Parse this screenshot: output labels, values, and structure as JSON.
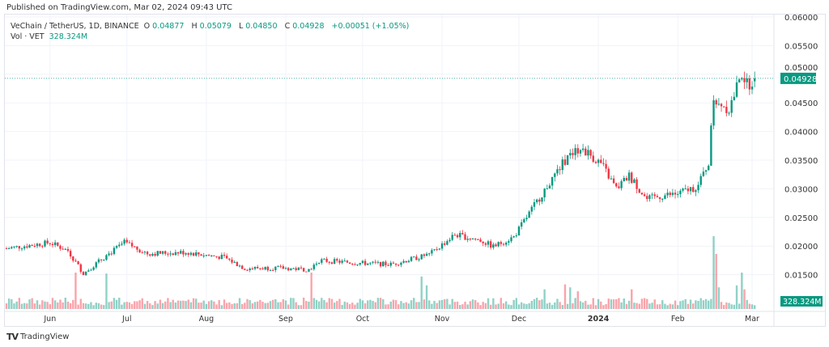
{
  "header": {
    "published": "Published on TradingView.com, Mar 02, 2024 09:43 UTC"
  },
  "legend": {
    "symbol": "VeChain / TetherUS, 1D, BINANCE",
    "o_label": "O",
    "o": "0.04877",
    "h_label": "H",
    "h": "0.05079",
    "l_label": "L",
    "l": "0.04850",
    "c_label": "C",
    "c": "0.04928",
    "change": "+0.00051 (+1.05%)",
    "vol_label": "Vol · VET",
    "vol": "328.324M"
  },
  "footer": {
    "brand": "TradingView"
  },
  "colors": {
    "up": "#089981",
    "down": "#f23645",
    "grid": "#f0f3fa"
  },
  "chart_data": {
    "type": "candlestick",
    "title": "VeChain / TetherUS, 1D, BINANCE",
    "ylim": [
      0.0125,
      0.06
    ],
    "y_ticks": [
      "0.06000",
      "0.05500",
      "0.05000",
      "0.04500",
      "0.04000",
      "0.03500",
      "0.03000",
      "0.02500",
      "0.02000",
      "0.01500"
    ],
    "x_ticks": [
      {
        "label": "Jun",
        "day": 17
      },
      {
        "label": "Jul",
        "day": 47
      },
      {
        "label": "Aug",
        "day": 78
      },
      {
        "label": "Sep",
        "day": 109
      },
      {
        "label": "Oct",
        "day": 139
      },
      {
        "label": "Nov",
        "day": 170
      },
      {
        "label": "Dec",
        "day": 200
      },
      {
        "label": "2024",
        "day": 231
      },
      {
        "label": "Feb",
        "day": 262
      },
      {
        "label": "Mar",
        "day": 291
      }
    ],
    "days": 293,
    "close_keyframes": [
      [
        0,
        0.0196
      ],
      [
        17,
        0.0206
      ],
      [
        24,
        0.0192
      ],
      [
        30,
        0.0152
      ],
      [
        38,
        0.018
      ],
      [
        46,
        0.0206
      ],
      [
        55,
        0.0187
      ],
      [
        70,
        0.0189
      ],
      [
        85,
        0.018
      ],
      [
        93,
        0.0161
      ],
      [
        105,
        0.0162
      ],
      [
        118,
        0.0159
      ],
      [
        122,
        0.0175
      ],
      [
        135,
        0.0171
      ],
      [
        150,
        0.0168
      ],
      [
        165,
        0.0185
      ],
      [
        175,
        0.022
      ],
      [
        185,
        0.021
      ],
      [
        190,
        0.0199
      ],
      [
        198,
        0.0216
      ],
      [
        210,
        0.0298
      ],
      [
        218,
        0.035
      ],
      [
        224,
        0.0373
      ],
      [
        232,
        0.0344
      ],
      [
        238,
        0.03
      ],
      [
        243,
        0.0323
      ],
      [
        250,
        0.0281
      ],
      [
        256,
        0.0288
      ],
      [
        262,
        0.0291
      ],
      [
        270,
        0.0305
      ],
      [
        274,
        0.0347
      ],
      [
        276,
        0.0459
      ],
      [
        282,
        0.0439
      ],
      [
        287,
        0.0502
      ],
      [
        289,
        0.0481
      ],
      [
        292,
        0.04928
      ]
    ],
    "last_price": "0.04928",
    "volume_base_m": 320,
    "volume_spikes_m": [
      [
        27,
        1850
      ],
      [
        39,
        1800
      ],
      [
        119,
        1850
      ],
      [
        162,
        1650
      ],
      [
        164,
        1200
      ],
      [
        210,
        1000
      ],
      [
        218,
        1250
      ],
      [
        220,
        1100
      ],
      [
        223,
        900
      ],
      [
        244,
        1000
      ],
      [
        276,
        3700
      ],
      [
        277,
        2800
      ],
      [
        278,
        1100
      ],
      [
        285,
        1200
      ],
      [
        287,
        1850
      ],
      [
        288,
        1000
      ]
    ],
    "last_volume": "328.324M"
  }
}
